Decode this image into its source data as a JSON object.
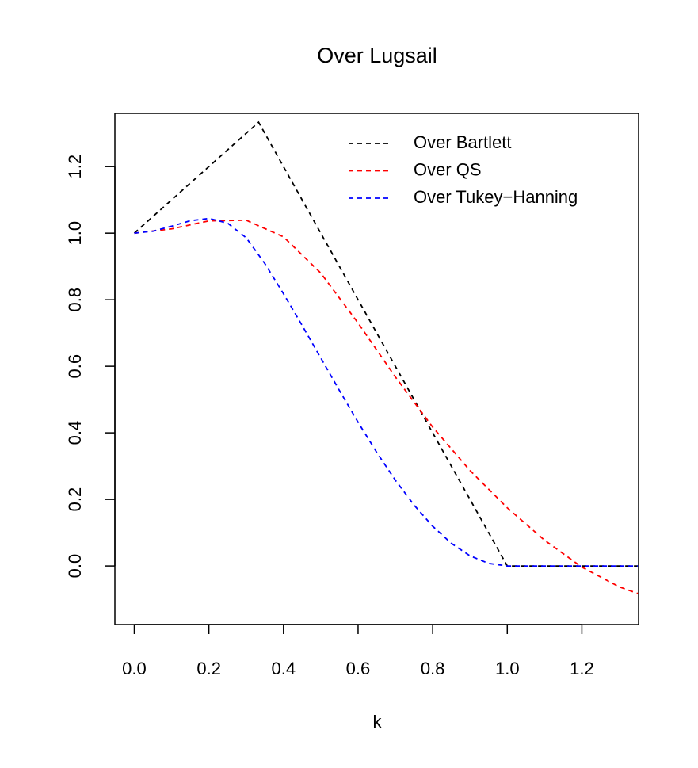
{
  "chart_data": {
    "type": "line",
    "title": "Over Lugsail",
    "xlabel": "k",
    "xlim": [
      -0.052,
      1.352
    ],
    "ylim": [
      -0.176,
      1.36
    ],
    "xticks": [
      {
        "value": 0,
        "label": "0.0"
      },
      0.2,
      0.4,
      0.6,
      0.8,
      {
        "value": 1,
        "label": "1.0"
      },
      1.2
    ],
    "yticks": [
      {
        "value": 0,
        "label": "0.0"
      },
      0.2,
      0.4,
      0.6,
      0.8,
      {
        "value": 1,
        "label": "1.0"
      },
      1.2
    ],
    "legend": "top-right",
    "series": [
      {
        "name": "Over Bartlett",
        "color": "#000000",
        "x": [
          0,
          0.3333,
          1,
          1.35
        ],
        "values": [
          1,
          1.3333,
          0,
          0
        ]
      },
      {
        "name": "Over QS",
        "color": "#ff0000",
        "x": [
          0,
          0.1,
          0.2,
          0.3,
          0.4,
          0.5,
          0.6,
          0.7,
          0.8,
          0.9,
          1.0,
          1.1,
          1.2,
          1.3,
          1.35
        ],
        "values": [
          1,
          1.01288,
          1.03699,
          1.03892,
          0.98898,
          0.88007,
          0.72997,
          0.56793,
          0.41727,
          0.28685,
          0.17464,
          0.07731,
          -0.00352,
          -0.06261,
          -0.08275
        ]
      },
      {
        "name": "Over Tukey−Hanning",
        "color": "#0000ff",
        "x": [
          0,
          0.05,
          0.1,
          0.15,
          0.2,
          0.25,
          0.3,
          0.35,
          0.4,
          0.45,
          0.5,
          0.55,
          0.6,
          0.65,
          0.7,
          0.75,
          0.8,
          0.85,
          0.9,
          0.95,
          1.0,
          1.35
        ],
        "values": [
          1,
          1.00592,
          1.02094,
          1.03733,
          1.04427,
          1.03033,
          0.98624,
          0.90875,
          0.81814,
          0.72278,
          0.625,
          0.52723,
          0.43186,
          0.34125,
          0.25764,
          0.18306,
          0.11936,
          0.06811,
          0.03059,
          0.0077,
          0,
          0
        ]
      }
    ]
  }
}
